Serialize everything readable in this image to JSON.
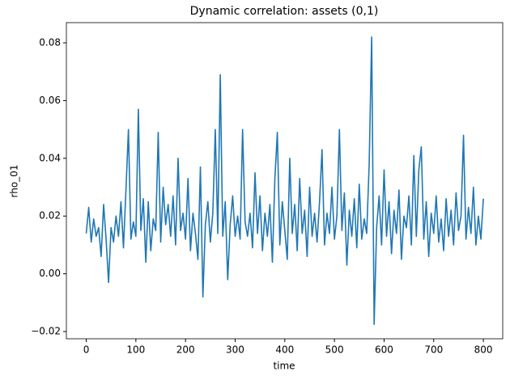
{
  "chart_data": {
    "type": "line",
    "title": "Dynamic correlation: assets (0,1)",
    "xlabel": "time",
    "ylabel": "rho_01",
    "color": "#1f77b4",
    "x": [
      0,
      5,
      10,
      15,
      20,
      25,
      30,
      35,
      40,
      45,
      50,
      55,
      60,
      65,
      70,
      75,
      80,
      85,
      90,
      95,
      100,
      105,
      110,
      115,
      120,
      125,
      130,
      135,
      140,
      145,
      150,
      155,
      160,
      165,
      170,
      175,
      180,
      185,
      190,
      195,
      200,
      205,
      210,
      215,
      220,
      225,
      230,
      235,
      240,
      245,
      250,
      255,
      260,
      265,
      270,
      275,
      280,
      285,
      290,
      295,
      300,
      305,
      310,
      315,
      320,
      325,
      330,
      335,
      340,
      345,
      350,
      355,
      360,
      365,
      370,
      375,
      380,
      385,
      390,
      395,
      400,
      405,
      410,
      415,
      420,
      425,
      430,
      435,
      440,
      445,
      450,
      455,
      460,
      465,
      470,
      475,
      480,
      485,
      490,
      495,
      500,
      505,
      510,
      515,
      520,
      525,
      530,
      535,
      540,
      545,
      550,
      555,
      560,
      565,
      570,
      575,
      580,
      585,
      590,
      595,
      600,
      605,
      610,
      615,
      620,
      625,
      630,
      635,
      640,
      645,
      650,
      655,
      660,
      665,
      670,
      675,
      680,
      685,
      690,
      695,
      700,
      705,
      710,
      715,
      720,
      725,
      730,
      735,
      740,
      745,
      750,
      755,
      760,
      765,
      770,
      775,
      780,
      785,
      790,
      795,
      800
    ],
    "values": [
      0.014,
      0.023,
      0.011,
      0.019,
      0.013,
      0.016,
      0.006,
      0.024,
      0.012,
      -0.003,
      0.016,
      0.011,
      0.02,
      0.013,
      0.025,
      0.009,
      0.029,
      0.05,
      0.012,
      0.018,
      0.013,
      0.057,
      0.015,
      0.026,
      0.004,
      0.025,
      0.008,
      0.019,
      0.015,
      0.049,
      0.011,
      0.03,
      0.017,
      0.024,
      0.013,
      0.027,
      0.01,
      0.04,
      0.015,
      0.021,
      0.012,
      0.033,
      0.008,
      0.021,
      0.014,
      0.005,
      0.037,
      -0.008,
      0.017,
      0.025,
      0.011,
      0.021,
      0.05,
      0.014,
      0.069,
      0.013,
      0.025,
      -0.002,
      0.017,
      0.027,
      0.013,
      0.02,
      0.012,
      0.05,
      0.018,
      0.013,
      0.021,
      0.009,
      0.035,
      0.014,
      0.027,
      0.008,
      0.021,
      0.013,
      0.024,
      0.004,
      0.033,
      0.049,
      0.01,
      0.025,
      0.015,
      0.005,
      0.04,
      0.014,
      0.024,
      0.008,
      0.033,
      0.014,
      0.022,
      0.006,
      0.03,
      0.013,
      0.021,
      0.011,
      0.025,
      0.043,
      0.01,
      0.021,
      0.014,
      0.03,
      0.012,
      0.02,
      0.05,
      0.015,
      0.028,
      0.003,
      0.022,
      0.013,
      0.026,
      0.009,
      0.031,
      0.012,
      0.019,
      0.014,
      0.038,
      0.082,
      -0.0175,
      0.016,
      0.027,
      0.01,
      0.036,
      0.013,
      0.025,
      0.007,
      0.022,
      0.014,
      0.029,
      0.005,
      0.02,
      0.016,
      0.027,
      0.01,
      0.041,
      0.013,
      0.036,
      0.044,
      0.012,
      0.025,
      0.006,
      0.021,
      0.014,
      0.027,
      0.011,
      0.019,
      0.008,
      0.026,
      0.013,
      0.022,
      0.01,
      0.028,
      0.015,
      0.02,
      0.048,
      0.012,
      0.023,
      0.014,
      0.03,
      0.01,
      0.02,
      0.012,
      0.026
    ],
    "xlim": [
      -40,
      839
    ],
    "xticks": [
      0,
      100,
      200,
      300,
      400,
      500,
      600,
      700,
      800
    ],
    "ylim": [
      -0.0225,
      0.087
    ],
    "yticks": [
      {
        "value": -0.02,
        "label": "−0.02"
      },
      {
        "value": 0,
        "label": "0.00"
      },
      0.02,
      0.04,
      0.06,
      0.08
    ]
  }
}
